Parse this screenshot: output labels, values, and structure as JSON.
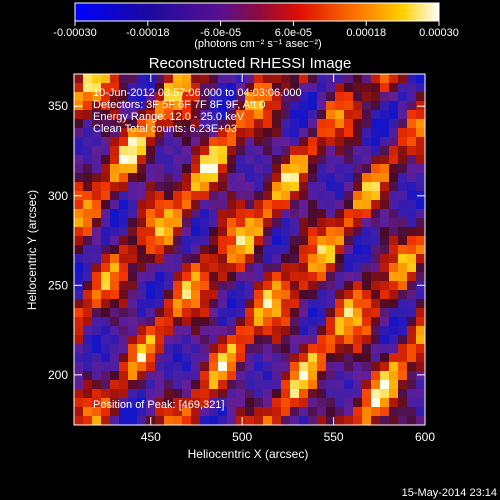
{
  "colorbar": {
    "tick_labels": [
      "-0.00030",
      "-0.00018",
      "-6.0e-05",
      "6.0e-05",
      "0.00018",
      "0.00030"
    ],
    "tick_values": [
      -0.0003,
      -0.00018,
      -6e-05,
      6e-05,
      0.00018,
      0.0003
    ],
    "range": [
      -0.0003,
      0.0003
    ],
    "units_label": "(photons cm⁻² s⁻¹ asec⁻²)"
  },
  "chart_data": {
    "type": "heatmap",
    "title": "Reconstructed RHESSI Image",
    "xlabel": "Heliocentric X (arcsec)",
    "ylabel": "Heliocentric Y (arcsec)",
    "xlim": [
      408,
      600
    ],
    "ylim": [
      172,
      368
    ],
    "x_ticks": [
      450,
      500,
      550,
      600
    ],
    "y_ticks": [
      200,
      250,
      300,
      350
    ],
    "peak_position": [
      469,
      321
    ],
    "colormap": "blue-purple-red-yellow-white"
  },
  "annotations": {
    "time_range": "10-Jun-2012 03:57:06.000 to 04:03:06.000",
    "detectors": "Detectors: 3F 5F 6F 7F 8F 9F, Att 0",
    "energy": "Energy Range: 12.0 - 25.0 keV",
    "clean": "Clean     Total counts: 6.23E+03",
    "peak": "Position of Peak: [469,321]"
  },
  "footer": {
    "timestamp": "15-May-2014 23:14"
  }
}
